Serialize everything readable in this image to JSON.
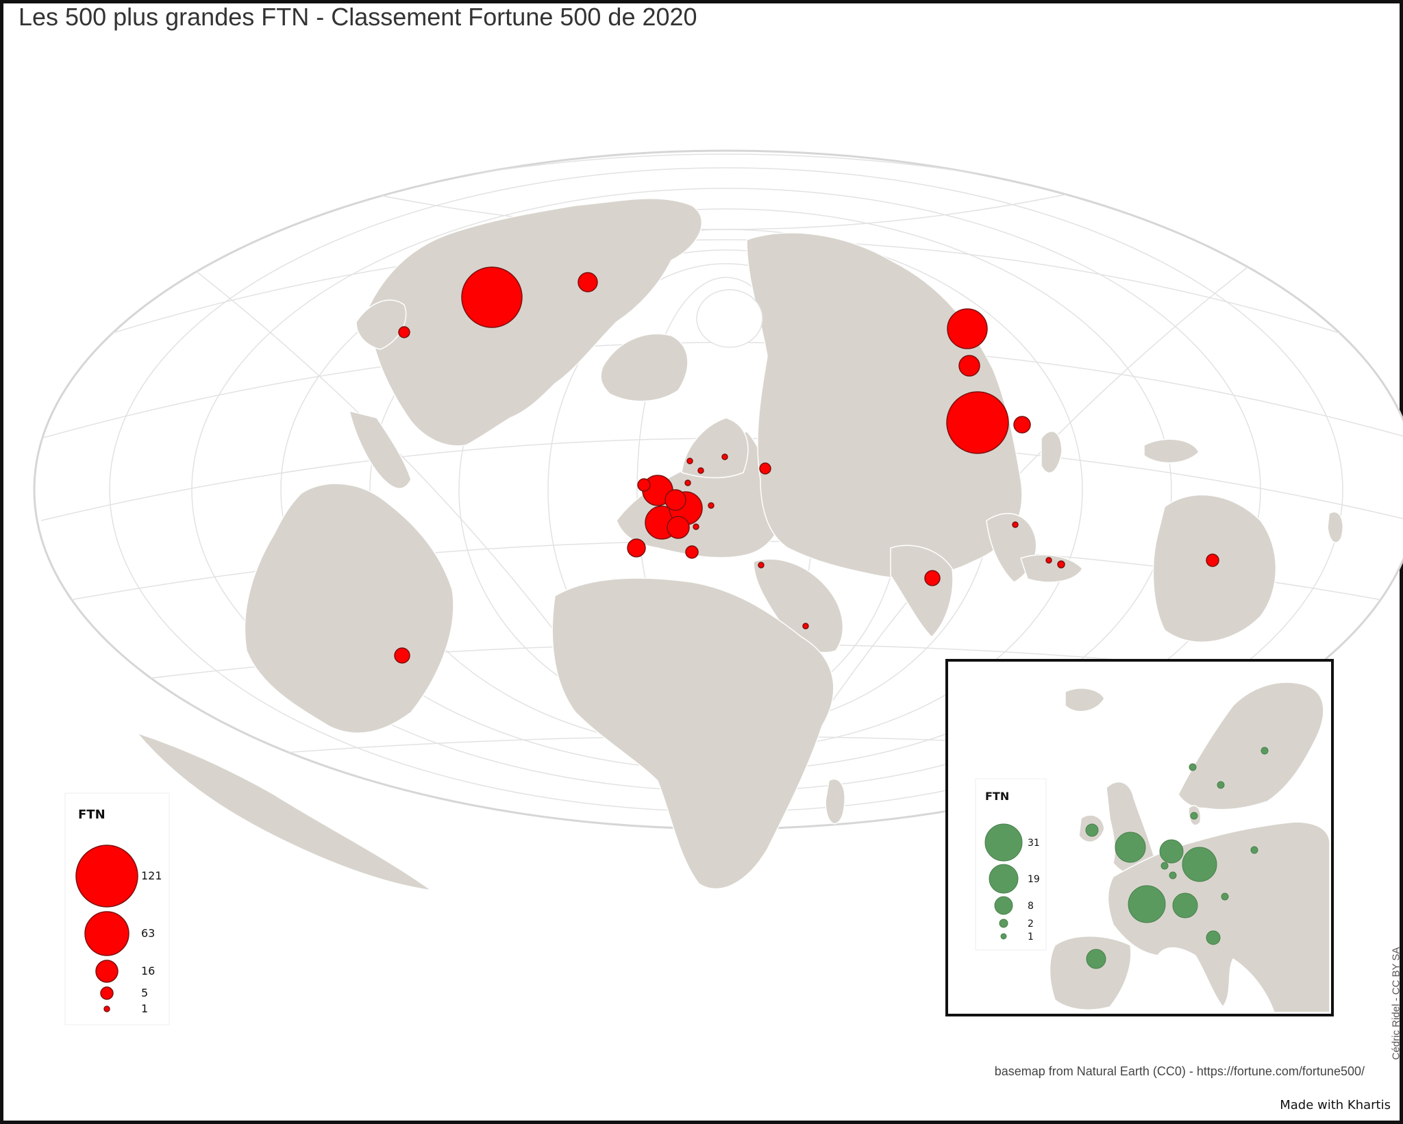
{
  "title": "Les 500 plus grandes FTN - Classement Fortune 500 de 2020",
  "source": "basemap from Natural Earth (CC0) - https://fortune.com/fortune500/",
  "made_with": "Made with Khartis",
  "author": "Cédric Ridel - CC BY SA",
  "colors": {
    "world_symbol": "#ff0000",
    "europe_symbol": "#5a9a5e",
    "land": "#d8d4cd",
    "graticule": "#dcdcdc",
    "ocean": "#ffffff"
  },
  "legend_world": {
    "title": "FTN",
    "values": [
      "121",
      "63",
      "16",
      "5",
      "1"
    ]
  },
  "legend_europe": {
    "title": "FTN",
    "values": [
      "31",
      "19",
      "8",
      "2",
      "1"
    ]
  }
}
